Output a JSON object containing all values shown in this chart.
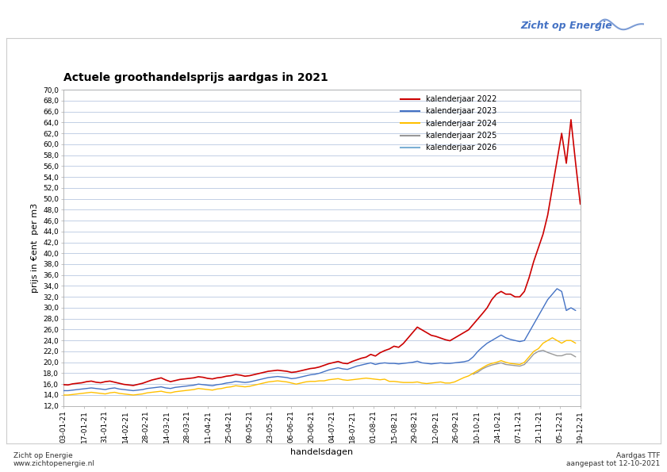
{
  "title": "Actuele groothandelsprijs aardgas in 2021",
  "xlabel": "handelsdagen",
  "ylabel": "prijs in €ent  per m3",
  "ylim": [
    12.0,
    70.0
  ],
  "yticks": [
    12.0,
    14.0,
    16.0,
    18.0,
    20.0,
    22.0,
    24.0,
    26.0,
    28.0,
    30.0,
    32.0,
    34.0,
    36.0,
    38.0,
    40.0,
    42.0,
    44.0,
    46.0,
    48.0,
    50.0,
    52.0,
    54.0,
    56.0,
    58.0,
    60.0,
    62.0,
    64.0,
    66.0,
    68.0,
    70.0
  ],
  "xtick_labels": [
    "03-01-21",
    "17-01-21",
    "31-01-21",
    "14-02-21",
    "28-02-21",
    "14-03-21",
    "28-03-21",
    "11-04-21",
    "25-04-21",
    "09-05-21",
    "23-05-21",
    "06-06-21",
    "20-06-21",
    "04-07-21",
    "18-07-21",
    "01-08-21",
    "15-08-21",
    "29-08-21",
    "12-09-21",
    "26-09-21",
    "10-10-21",
    "24-10-21",
    "07-11-21",
    "21-11-21",
    "05-12-21",
    "19-12-21"
  ],
  "footer_left": "Zicht op Energie\nwww.zichtopenergie.nl",
  "footer_right": "Aardgas TTF\naangepast tot 12-10-2021",
  "legend": [
    "kalenderjaar 2022",
    "kalenderjaar 2023",
    "kalenderjaar 2024",
    "kalenderjaar 2025",
    "kalenderjaar 2026"
  ],
  "colors": {
    "2022": "#cc0000",
    "2023": "#4472c4",
    "2024": "#ffc000",
    "2025": "#999999",
    "2026": "#7bafd4"
  },
  "series_2022": [
    15.9,
    15.85,
    16.05,
    16.15,
    16.25,
    16.45,
    16.55,
    16.35,
    16.25,
    16.45,
    16.55,
    16.35,
    16.15,
    15.95,
    15.85,
    15.75,
    15.95,
    16.15,
    16.45,
    16.75,
    16.95,
    17.15,
    16.75,
    16.45,
    16.65,
    16.85,
    16.95,
    17.05,
    17.15,
    17.35,
    17.25,
    17.05,
    16.95,
    17.15,
    17.25,
    17.45,
    17.55,
    17.75,
    17.65,
    17.45,
    17.55,
    17.75,
    17.95,
    18.15,
    18.35,
    18.45,
    18.55,
    18.45,
    18.35,
    18.15,
    18.25,
    18.45,
    18.65,
    18.85,
    18.95,
    19.15,
    19.45,
    19.75,
    19.95,
    20.15,
    19.85,
    19.75,
    20.15,
    20.45,
    20.75,
    20.95,
    21.45,
    21.15,
    21.75,
    22.15,
    22.45,
    22.95,
    22.75,
    23.45,
    24.45,
    25.45,
    26.45,
    25.95,
    25.45,
    24.95,
    24.75,
    24.45,
    24.15,
    23.95,
    24.45,
    24.95,
    25.45,
    25.95,
    26.95,
    27.95,
    28.95,
    30.0,
    31.5,
    32.5,
    33.0,
    32.5,
    32.5,
    32.0,
    32.0,
    33.0,
    35.5,
    38.5,
    41.0,
    43.5,
    47.0,
    52.0,
    57.0,
    62.0,
    56.5,
    64.5,
    56.5,
    49.0
  ],
  "series_2023": [
    14.8,
    14.8,
    14.9,
    15.0,
    15.1,
    15.2,
    15.3,
    15.2,
    15.1,
    15.0,
    15.2,
    15.3,
    15.1,
    15.0,
    14.9,
    14.8,
    14.9,
    15.0,
    15.2,
    15.3,
    15.4,
    15.5,
    15.3,
    15.2,
    15.4,
    15.5,
    15.6,
    15.7,
    15.8,
    16.0,
    15.9,
    15.8,
    15.7,
    15.9,
    16.0,
    16.2,
    16.3,
    16.5,
    16.4,
    16.3,
    16.4,
    16.6,
    16.8,
    17.0,
    17.2,
    17.3,
    17.4,
    17.3,
    17.2,
    17.0,
    17.1,
    17.3,
    17.5,
    17.7,
    17.8,
    18.0,
    18.3,
    18.6,
    18.8,
    19.0,
    18.8,
    18.7,
    19.0,
    19.3,
    19.5,
    19.7,
    19.9,
    19.6,
    19.8,
    19.9,
    19.8,
    19.8,
    19.7,
    19.8,
    19.9,
    20.0,
    20.2,
    19.9,
    19.8,
    19.7,
    19.8,
    19.9,
    19.8,
    19.8,
    19.9,
    20.0,
    20.1,
    20.3,
    21.0,
    22.0,
    22.8,
    23.5,
    24.0,
    24.5,
    25.0,
    24.5,
    24.2,
    24.0,
    23.8,
    24.0,
    25.5,
    27.0,
    28.5,
    30.0,
    31.5,
    32.5,
    33.5,
    33.0,
    29.5,
    30.0,
    29.5,
    null
  ],
  "series_2024": [
    14.0,
    14.0,
    14.1,
    14.2,
    14.3,
    14.4,
    14.5,
    14.4,
    14.3,
    14.2,
    14.4,
    14.5,
    14.3,
    14.2,
    14.1,
    14.0,
    14.1,
    14.2,
    14.4,
    14.5,
    14.6,
    14.7,
    14.5,
    14.4,
    14.6,
    14.7,
    14.8,
    14.9,
    15.0,
    15.2,
    15.1,
    15.0,
    14.9,
    15.1,
    15.2,
    15.4,
    15.5,
    15.7,
    15.6,
    15.5,
    15.6,
    15.8,
    16.0,
    16.2,
    16.4,
    16.5,
    16.6,
    16.5,
    16.4,
    16.2,
    16.0,
    16.2,
    16.4,
    16.5,
    16.5,
    16.6,
    16.6,
    16.8,
    16.9,
    17.0,
    16.8,
    16.7,
    16.8,
    16.9,
    17.0,
    17.1,
    17.0,
    16.9,
    16.8,
    16.9,
    16.5,
    16.5,
    16.4,
    16.3,
    16.3,
    16.3,
    16.4,
    16.2,
    16.1,
    16.2,
    16.3,
    16.4,
    16.2,
    16.2,
    16.4,
    16.8,
    17.2,
    17.5,
    18.0,
    18.5,
    19.0,
    19.5,
    19.8,
    20.0,
    20.3,
    20.0,
    19.8,
    19.7,
    19.6,
    20.0,
    21.0,
    22.0,
    22.5,
    23.5,
    24.0,
    24.5,
    24.0,
    23.5,
    24.0,
    24.0,
    23.5,
    null
  ],
  "series_2025": [
    null,
    null,
    null,
    null,
    null,
    null,
    null,
    null,
    null,
    null,
    null,
    null,
    null,
    null,
    null,
    null,
    null,
    null,
    null,
    null,
    null,
    null,
    null,
    null,
    null,
    null,
    null,
    null,
    null,
    null,
    null,
    null,
    null,
    null,
    null,
    null,
    null,
    null,
    null,
    null,
    null,
    null,
    null,
    null,
    null,
    null,
    null,
    null,
    null,
    null,
    null,
    null,
    null,
    null,
    null,
    null,
    null,
    null,
    null,
    null,
    null,
    null,
    null,
    null,
    null,
    null,
    null,
    null,
    null,
    null,
    null,
    null,
    null,
    null,
    null,
    null,
    null,
    null,
    null,
    null,
    null,
    null,
    null,
    null,
    null,
    null,
    null,
    null,
    17.8,
    18.2,
    18.8,
    19.2,
    19.5,
    19.7,
    19.9,
    19.6,
    19.5,
    19.4,
    19.3,
    19.6,
    20.5,
    21.5,
    22.0,
    22.2,
    21.8,
    21.5,
    21.2,
    21.2,
    21.5,
    21.5,
    21.0,
    null
  ],
  "series_2026": [
    null,
    null,
    null,
    null,
    null,
    null,
    null,
    null,
    null,
    null,
    null,
    null,
    null,
    null,
    null,
    null,
    null,
    null,
    null,
    null,
    null,
    null,
    null,
    null,
    null,
    null,
    null,
    null,
    null,
    null,
    null,
    null,
    null,
    null,
    null,
    null,
    null,
    null,
    null,
    null,
    null,
    null,
    null,
    null,
    null,
    null,
    null,
    null,
    null,
    null,
    null,
    null,
    null,
    null,
    null,
    null,
    null,
    null,
    null,
    null,
    null,
    null,
    null,
    null,
    null,
    null,
    null,
    null,
    null,
    null,
    null,
    null,
    null,
    null,
    null,
    null,
    null,
    null,
    null,
    null,
    null,
    null,
    null,
    null,
    null,
    null,
    null,
    null,
    null,
    null,
    null,
    null,
    null,
    null,
    null,
    null,
    null,
    null,
    null,
    null,
    null,
    null,
    null,
    null,
    null,
    null,
    null,
    null,
    null,
    null,
    20.5,
    null
  ],
  "background_color": "#ffffff",
  "plot_bg_color": "#ffffff",
  "grid_color": "#b8c8e0",
  "title_fontsize": 10,
  "tick_fontsize": 6.5,
  "axis_label_fontsize": 8,
  "logo_text": "Zicht op Energie",
  "logo_color": "#4472c4"
}
